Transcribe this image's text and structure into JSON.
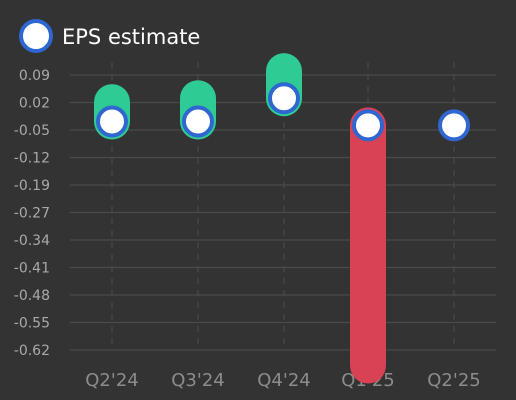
{
  "chart_data": {
    "type": "bar",
    "legend": {
      "label": "EPS estimate",
      "placement": "top-left"
    },
    "categories": [
      "Q2'24",
      "Q3'24",
      "Q4'24",
      "Q1'25",
      "Q2'25"
    ],
    "yticks": [
      "0.09",
      "0.02",
      "-0.05",
      "-0.12",
      "-0.19",
      "-0.27",
      "-0.34",
      "-0.41",
      "-0.48",
      "-0.55",
      "-0.62"
    ],
    "ylim": [
      -0.67,
      0.11
    ],
    "grid": true,
    "series": [
      {
        "name": "EPS estimate",
        "values": [
          -0.03,
          -0.03,
          0.03,
          -0.04,
          -0.04
        ]
      },
      {
        "values": [
          0.02,
          0.03,
          0.1,
          -0.66,
          null
        ]
      }
    ],
    "colors": {
      "background": "#333333",
      "grid": "#4a4a4a",
      "beat": "#2ecc94",
      "miss": "#d94155",
      "estimate_fill": "#ffffff",
      "estimate_stroke": "#2f66d0"
    }
  }
}
